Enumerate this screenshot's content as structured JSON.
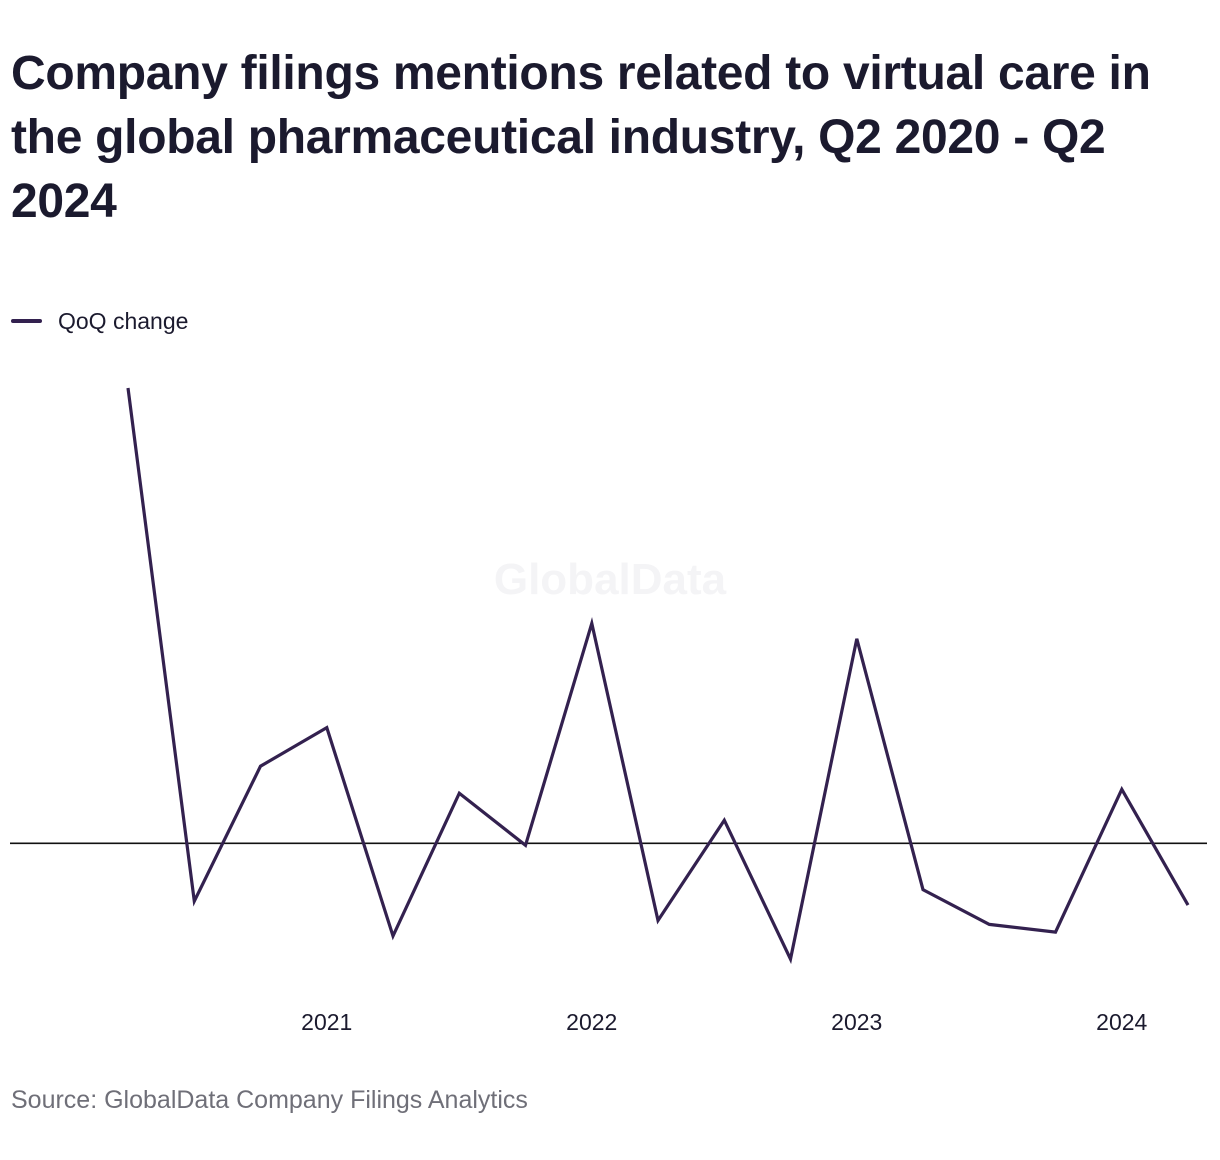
{
  "chart_data": {
    "type": "line",
    "title": "Company filings mentions related to virtual care in the global pharmaceutical industry, Q2 2020 - Q2 2024",
    "subtitle": "",
    "xlabel": "",
    "ylabel": "",
    "x": [
      "Q2 2020",
      "Q3 2020",
      "Q4 2020",
      "Q1 2021",
      "Q2 2021",
      "Q3 2021",
      "Q4 2021",
      "Q1 2022",
      "Q2 2022",
      "Q3 2022",
      "Q4 2022",
      "Q1 2023",
      "Q2 2023",
      "Q3 2023",
      "Q4 2023",
      "Q1 2024",
      "Q2 2024"
    ],
    "tick_labels": [
      "2021",
      "2022",
      "2023",
      "2024"
    ],
    "tick_positions": [
      "Q1 2021",
      "Q1 2022",
      "Q1 2023",
      "Q1 2024"
    ],
    "series": [
      {
        "name": "QoQ change",
        "values": [
          118,
          -15,
          20,
          30,
          -24,
          13,
          -0.5,
          57,
          -20,
          6,
          -30,
          53,
          -12,
          -21,
          -23,
          14,
          -16
        ],
        "color": "#33214f"
      }
    ],
    "ylim": [
      -38,
      118
    ],
    "zero_line": true,
    "grid": false,
    "y_ticks_shown": false,
    "legend_position": "top-left",
    "colors": {
      "line": "#33214f",
      "zero_line": "#111111",
      "text": "#1b1a2e",
      "source_text": "#6f6f78",
      "watermark": "#f4f4f6"
    }
  },
  "legend": {
    "label": "QoQ change"
  },
  "watermark": "GlobalData",
  "source": "Source: GlobalData Company Filings Analytics"
}
